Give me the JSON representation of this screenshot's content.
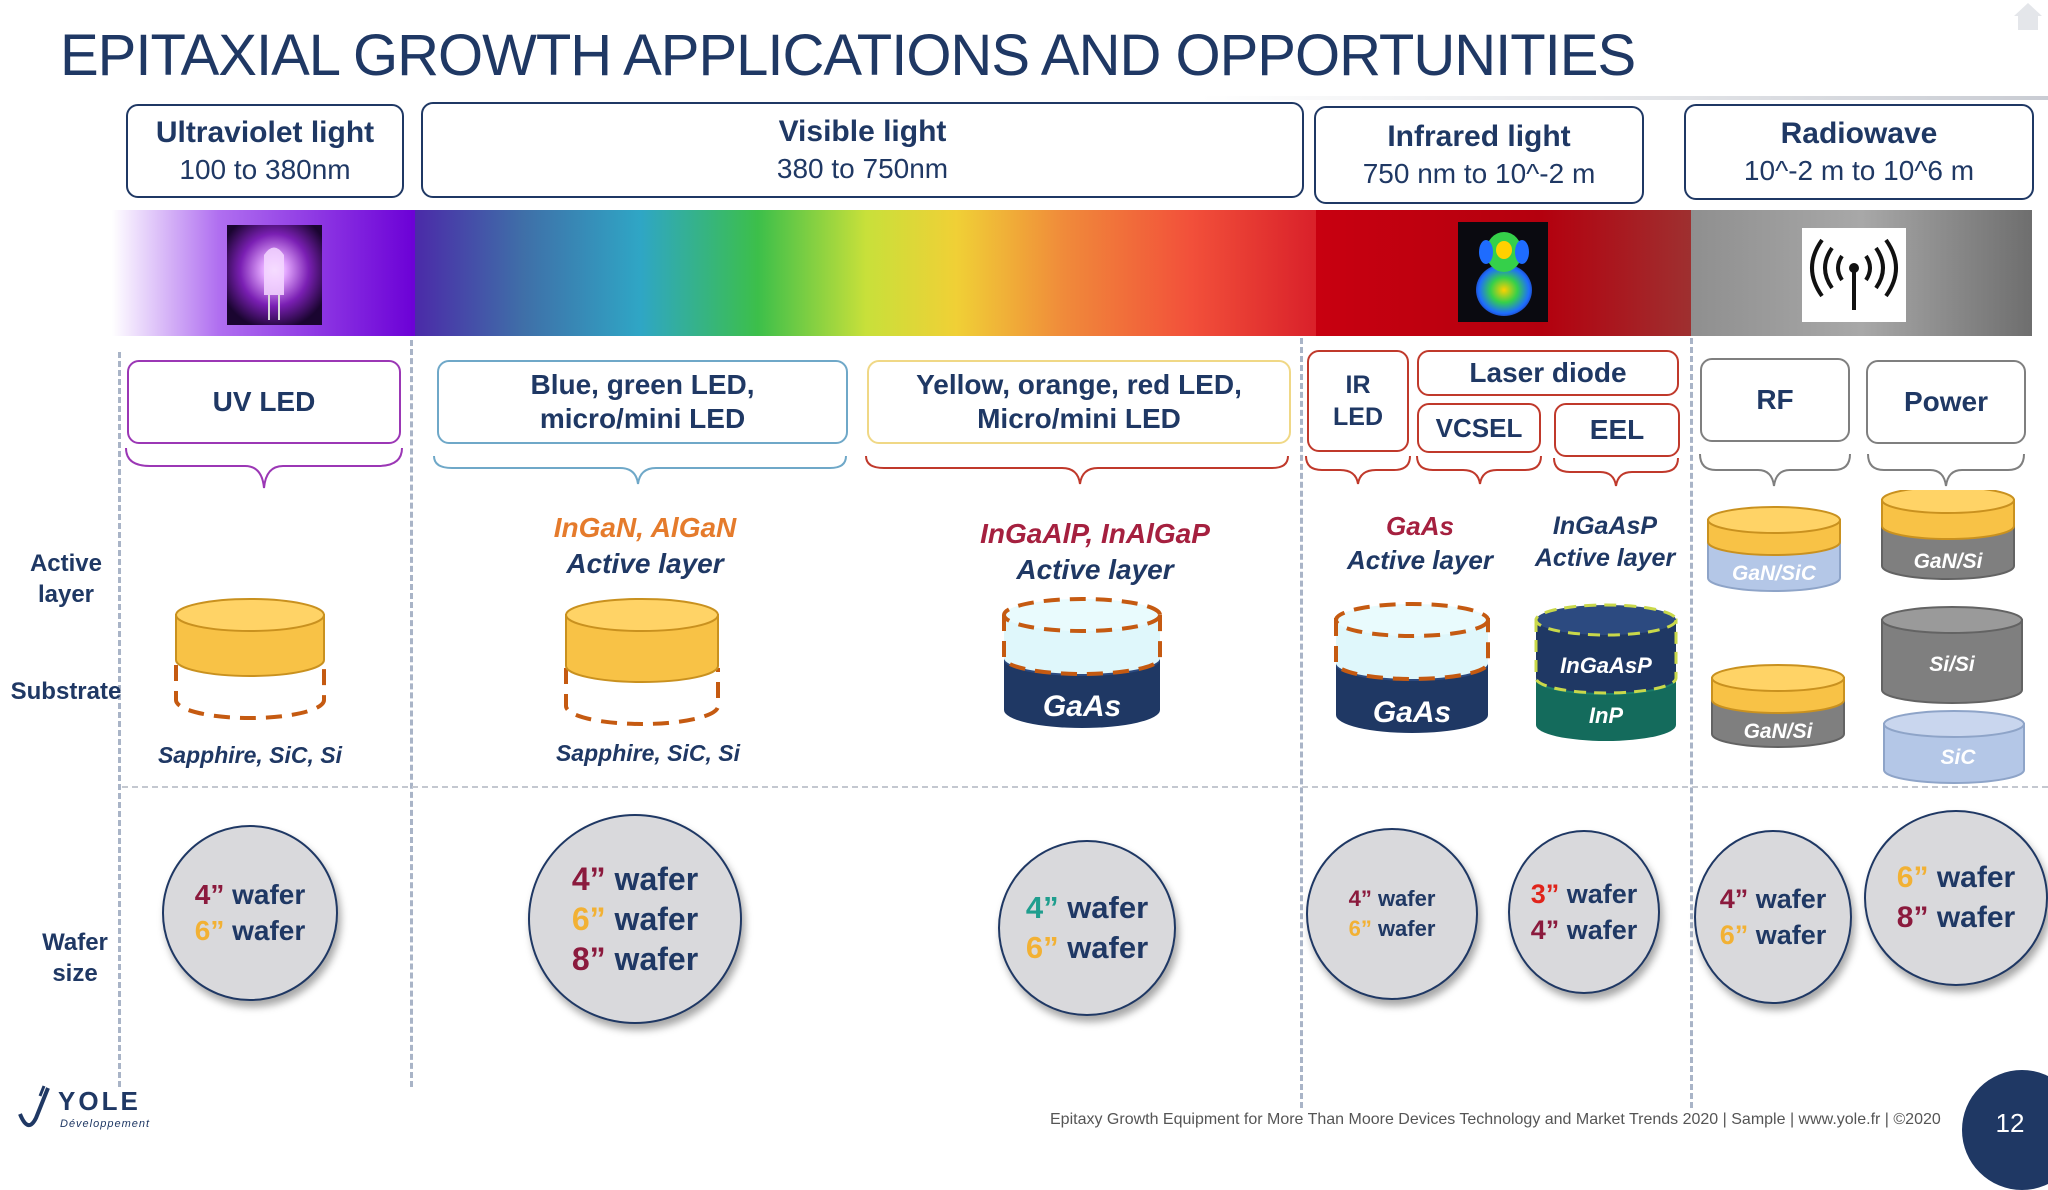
{
  "title": "EPITAXIAL GROWTH APPLICATIONS AND OPPORTUNITIES",
  "bands": [
    {
      "name": "Ultraviolet light",
      "range": "100 to 380nm"
    },
    {
      "name": "Visible light",
      "range": "380 to 750nm"
    },
    {
      "name": "Infrared light",
      "range": "750 nm to 10^-2 m"
    },
    {
      "name": "Radiowave",
      "range": "10^-2 m to 10^6 m"
    }
  ],
  "row_labels": {
    "active": "Active layer",
    "substrate": "Substrate",
    "wafer": "Wafer size"
  },
  "apps": {
    "uv_led": "UV LED",
    "blue": [
      "Blue, green LED,",
      "micro/mini LED"
    ],
    "yellow": [
      "Yellow, orange, red LED,",
      "Micro/mini LED"
    ],
    "ir": [
      "IR",
      "LED"
    ],
    "laser": "Laser diode",
    "vcsel": "VCSEL",
    "eel": "EEL",
    "rf": "RF",
    "power": "Power"
  },
  "materials": {
    "blue_active": "InGaN, AlGaN",
    "blue_active_sub": "Active layer",
    "red_active": "InGaAlP, InAlGaP",
    "red_active_sub": "Active layer",
    "ir_active": "GaAs",
    "ir_active_sub": "Active layer",
    "eel_active": "InGaAsP",
    "eel_active_sub": "Active layer",
    "uv_substrate": "Sapphire, SiC, Si",
    "blue_substrate": "Sapphire, SiC, Si"
  },
  "disk_labels": {
    "gaas_red": "GaAs",
    "gaas_ir": "GaAs",
    "eel_top": "InGaAsP",
    "eel_bottom": "InP",
    "rf_top": "GaN/SiC",
    "rf_bottom": "GaN/Si",
    "power_top": "GaN/Si",
    "power_mid": "Si/Si",
    "power_bottom": "SiC"
  },
  "wafers": {
    "uv": [
      {
        "num": "4",
        "label": "wafer"
      },
      {
        "num": "6",
        "label": "wafer"
      }
    ],
    "blue": [
      {
        "num": "4",
        "label": "wafer"
      },
      {
        "num": "6",
        "label": "wafer"
      },
      {
        "num": "8",
        "label": "wafer"
      }
    ],
    "red": [
      {
        "num": "4",
        "label": "wafer"
      },
      {
        "num": "6",
        "label": "wafer"
      }
    ],
    "ir": [
      {
        "num": "4",
        "label": "wafer"
      },
      {
        "num": "6",
        "label": "wafer"
      }
    ],
    "eel": [
      {
        "num": "3",
        "label": "wafer"
      },
      {
        "num": "4",
        "label": "wafer"
      }
    ],
    "rf": [
      {
        "num": "4",
        "label": "wafer"
      },
      {
        "num": "6",
        "label": "wafer"
      }
    ],
    "power": [
      {
        "num": "6",
        "label": "wafer"
      },
      {
        "num": "8",
        "label": "wafer"
      }
    ]
  },
  "quote": "”",
  "colors": {
    "navy": "#1f3864",
    "w3": "#e0241b",
    "w4": "#8b1a3d",
    "w4teal": "#1f9e8e",
    "w6": "#f2b134",
    "w8": "#8b1a3d",
    "uv_border": "#9b37b5",
    "blue_border": "#6fa8c8",
    "yellow_border": "#f0d886",
    "red_border": "#c0392b",
    "gray_border": "#7f7f7f",
    "orange_text": "#e57b2c",
    "crimson_text": "#a5203f"
  },
  "logo": {
    "name": "YOLE",
    "sub": "Développement"
  },
  "footer": "Epitaxy Growth Equipment for More Than Moore Devices Technology and Market Trends 2020 | Sample | www.yole.fr | ©2020",
  "page_number": "12"
}
